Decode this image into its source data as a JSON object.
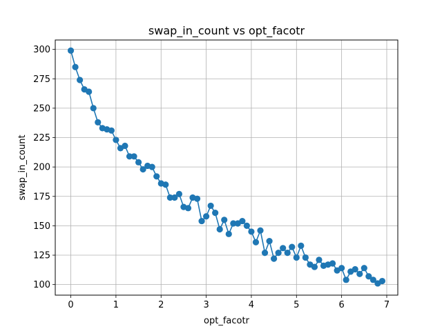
{
  "chart_data": {
    "type": "line",
    "title": "swap_in_count vs opt_facotr",
    "xlabel": "opt_facotr",
    "ylabel": "swap_in_count",
    "xlim": [
      -0.345,
      7.245
    ],
    "ylim": [
      91.0,
      308.0
    ],
    "xticks": [
      0,
      1,
      2,
      3,
      4,
      5,
      6,
      7
    ],
    "yticks": [
      100,
      125,
      150,
      175,
      200,
      225,
      250,
      275,
      300
    ],
    "grid": true,
    "marker": "circle",
    "color": "#1f77b4",
    "series": [
      {
        "x": [
          0.0,
          0.1,
          0.2,
          0.3,
          0.4,
          0.5,
          0.6,
          0.7,
          0.8,
          0.9,
          1.0,
          1.1,
          1.2,
          1.3,
          1.4,
          1.5,
          1.6,
          1.7,
          1.8,
          1.9,
          2.0,
          2.1,
          2.2,
          2.3,
          2.4,
          2.5,
          2.6,
          2.7,
          2.8,
          2.9,
          3.0,
          3.1,
          3.2,
          3.3,
          3.4,
          3.5,
          3.6,
          3.7,
          3.8,
          3.9,
          4.0,
          4.1,
          4.2,
          4.3,
          4.4,
          4.5,
          4.6,
          4.7,
          4.8,
          4.9,
          5.0,
          5.1,
          5.2,
          5.3,
          5.4,
          5.5,
          5.6,
          5.7,
          5.8,
          5.9,
          6.0,
          6.1,
          6.2,
          6.3,
          6.4,
          6.5,
          6.6,
          6.7,
          6.8,
          6.9
        ],
        "y": [
          299,
          285,
          274,
          266,
          264,
          250,
          238,
          233,
          232,
          231,
          223,
          216,
          218,
          209,
          209,
          204,
          198,
          201,
          200,
          192,
          186,
          185,
          174,
          174,
          177,
          166,
          165,
          174,
          173,
          154,
          158,
          167,
          161,
          147,
          155,
          143,
          152,
          152,
          154,
          150,
          145,
          136,
          146,
          127,
          137,
          122,
          127,
          131,
          127,
          132,
          123,
          133,
          123,
          117,
          115,
          121,
          116,
          117,
          118,
          112,
          114,
          104,
          111,
          113,
          109,
          114,
          107,
          104,
          101,
          103
        ]
      }
    ]
  }
}
